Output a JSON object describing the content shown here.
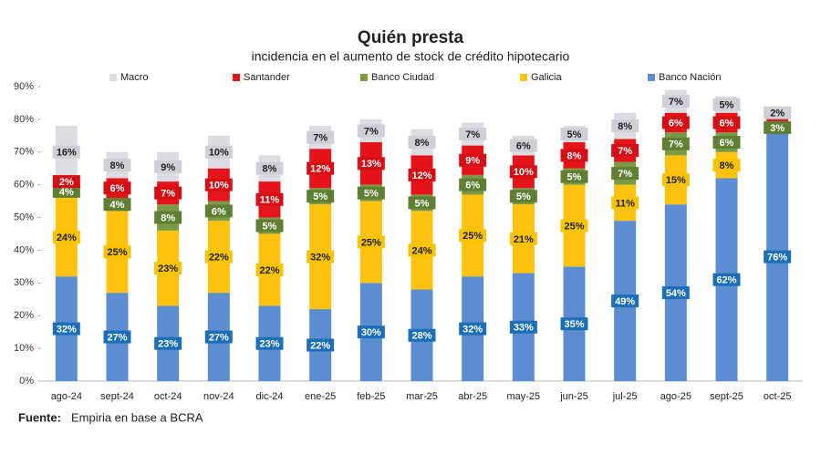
{
  "chart_data": {
    "type": "stacked_bar",
    "title": "Quién presta",
    "subtitle": "incidencia en el aumento de stock de crédito hipotecario",
    "source_label": "Fuente:",
    "source": "Empiria en base a BCRA",
    "categories": [
      "ago-24",
      "sept-24",
      "oct-24",
      "nov-24",
      "dic-24",
      "ene-25",
      "feb-25",
      "mar-25",
      "abr-25",
      "may-25",
      "jun-25",
      "jul-25",
      "ago-25",
      "sept-25",
      "oct-25"
    ],
    "ylim": [
      0,
      90
    ],
    "yticks": [
      {
        "value": 0,
        "label": "0%"
      },
      {
        "value": 10,
        "label": "10%"
      },
      {
        "value": 20,
        "label": "20%"
      },
      {
        "value": 30,
        "label": "30%"
      },
      {
        "value": 40,
        "label": "40%"
      },
      {
        "value": 50,
        "label": "50%"
      },
      {
        "value": 60,
        "label": "60%"
      },
      {
        "value": 70,
        "label": "70%"
      },
      {
        "value": 80,
        "label": "80%"
      },
      {
        "value": 90,
        "label": "90%"
      }
    ],
    "grid": false,
    "legend_position": "top",
    "series": [
      {
        "name": "Banco Nación",
        "color": "#5b8dd0",
        "values": [
          32,
          27,
          23,
          27,
          23,
          22,
          30,
          28,
          32,
          33,
          35,
          49,
          54,
          62,
          76
        ],
        "value_labels": [
          "32%",
          "27%",
          "23%",
          "27%",
          "23%",
          "22%",
          "30%",
          "28%",
          "32%",
          "33%",
          "35%",
          "49%",
          "54%",
          "62%",
          "76%"
        ]
      },
      {
        "name": "Galicia",
        "color": "#ffc20e",
        "values": [
          24,
          25,
          23,
          22,
          22,
          32,
          25,
          24,
          25,
          21,
          25,
          11,
          15,
          8,
          null
        ],
        "value_labels": [
          "24%",
          "25%",
          "23%",
          "22%",
          "22%",
          "32%",
          "25%",
          "24%",
          "25%",
          "21%",
          "25%",
          "11%",
          "15%",
          "8%",
          null
        ]
      },
      {
        "name": "Banco Ciudad",
        "color": "#7a9a45",
        "values": [
          4,
          4,
          8,
          6,
          5,
          5,
          5,
          5,
          6,
          5,
          5,
          7,
          7,
          6,
          3
        ],
        "value_labels": [
          "4%",
          "4%",
          "8%",
          "6%",
          "5%",
          "5%",
          "5%",
          "5%",
          "6%",
          "5%",
          "5%",
          "7%",
          "7%",
          "6%",
          "3%"
        ]
      },
      {
        "name": "Santander",
        "color": "#e5141b",
        "values": [
          2,
          6,
          7,
          10,
          11,
          12,
          13,
          12,
          9,
          10,
          8,
          7,
          6,
          6,
          2
        ],
        "value_labels": [
          "2%",
          "6%",
          "7%",
          "10%",
          "11%",
          "12%",
          "13%",
          "12%",
          "9%",
          "10%",
          "8%",
          "7%",
          "6%",
          "6%",
          null
        ]
      },
      {
        "name": "Macro",
        "color": "#dcdce3",
        "values": [
          16,
          8,
          9,
          10,
          8,
          7,
          7,
          8,
          7,
          6,
          5,
          8,
          7,
          5,
          2
        ],
        "value_labels": [
          "16%",
          "8%",
          "9%",
          "10%",
          "8%",
          "7%",
          "7%",
          "8%",
          "7%",
          "6%",
          "5%",
          "8%",
          "7%",
          "5%",
          "2%"
        ]
      }
    ]
  }
}
